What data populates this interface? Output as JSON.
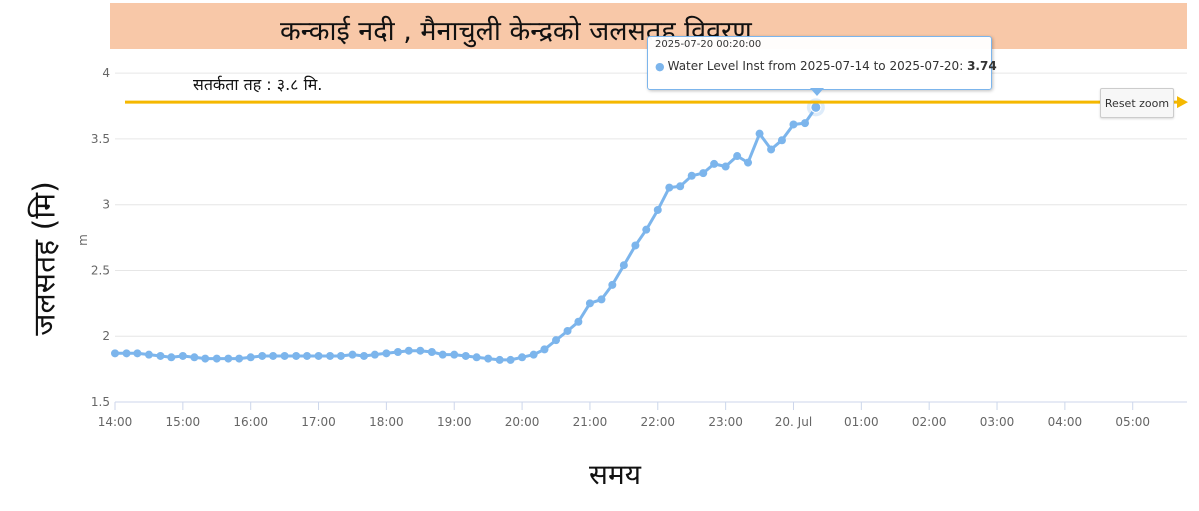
{
  "title": "कन्काई   नदी , मैनाचुली केन्द्रको जलसतह विवरण",
  "alert": {
    "label": "सतर्कता तह :  ३.८ मि.",
    "value": 3.78,
    "color": "#f5b800"
  },
  "reset_zoom_label": "Reset zoom",
  "tooltip": {
    "header": "2025-07-20 00:20:00",
    "series_label": "Water Level Inst from 2025-07-14 to 2025-07-20:",
    "value": "3.74"
  },
  "chart_data": {
    "type": "line",
    "ylabel_outer": "जलसतह (मि)",
    "ylabel_unit": "m",
    "xlabel": "समय",
    "ylim": [
      1.5,
      4.1
    ],
    "yticks": [
      {
        "value": 1.5,
        "label": "1.5"
      },
      {
        "value": 2,
        "label": "2"
      },
      {
        "value": 2.5,
        "label": "2.5"
      },
      {
        "value": 3,
        "label": "3"
      },
      {
        "value": 3.5,
        "label": "3.5"
      },
      {
        "value": 4,
        "label": "4"
      }
    ],
    "xlim_hours": [
      14,
      29.8
    ],
    "xticks": [
      {
        "h": 14,
        "label": "14:00"
      },
      {
        "h": 15,
        "label": "15:00"
      },
      {
        "h": 16,
        "label": "16:00"
      },
      {
        "h": 17,
        "label": "17:00"
      },
      {
        "h": 18,
        "label": "18:00"
      },
      {
        "h": 19,
        "label": "19:00"
      },
      {
        "h": 20,
        "label": "20:00"
      },
      {
        "h": 21,
        "label": "21:00"
      },
      {
        "h": 22,
        "label": "22:00"
      },
      {
        "h": 23,
        "label": "23:00"
      },
      {
        "h": 24,
        "label": "20. Jul"
      },
      {
        "h": 25,
        "label": "01:00"
      },
      {
        "h": 26,
        "label": "02:00"
      },
      {
        "h": 27,
        "label": "03:00"
      },
      {
        "h": 28,
        "label": "04:00"
      },
      {
        "h": 29,
        "label": "05:00"
      }
    ],
    "series": [
      {
        "color": "#7cb5ec",
        "points": [
          [
            14.0,
            1.87
          ],
          [
            14.17,
            1.87
          ],
          [
            14.33,
            1.87
          ],
          [
            14.5,
            1.86
          ],
          [
            14.67,
            1.85
          ],
          [
            14.83,
            1.84
          ],
          [
            15.0,
            1.85
          ],
          [
            15.17,
            1.84
          ],
          [
            15.33,
            1.83
          ],
          [
            15.5,
            1.83
          ],
          [
            15.67,
            1.83
          ],
          [
            15.83,
            1.83
          ],
          [
            16.0,
            1.84
          ],
          [
            16.17,
            1.85
          ],
          [
            16.33,
            1.85
          ],
          [
            16.5,
            1.85
          ],
          [
            16.67,
            1.85
          ],
          [
            16.83,
            1.85
          ],
          [
            17.0,
            1.85
          ],
          [
            17.17,
            1.85
          ],
          [
            17.33,
            1.85
          ],
          [
            17.5,
            1.86
          ],
          [
            17.67,
            1.85
          ],
          [
            17.83,
            1.86
          ],
          [
            18.0,
            1.87
          ],
          [
            18.17,
            1.88
          ],
          [
            18.33,
            1.89
          ],
          [
            18.5,
            1.89
          ],
          [
            18.67,
            1.88
          ],
          [
            18.83,
            1.86
          ],
          [
            19.0,
            1.86
          ],
          [
            19.17,
            1.85
          ],
          [
            19.33,
            1.84
          ],
          [
            19.5,
            1.83
          ],
          [
            19.67,
            1.82
          ],
          [
            19.83,
            1.82
          ],
          [
            20.0,
            1.84
          ],
          [
            20.17,
            1.86
          ],
          [
            20.33,
            1.9
          ],
          [
            20.5,
            1.97
          ],
          [
            20.67,
            2.04
          ],
          [
            20.83,
            2.11
          ],
          [
            21.0,
            2.25
          ],
          [
            21.17,
            2.28
          ],
          [
            21.33,
            2.39
          ],
          [
            21.5,
            2.54
          ],
          [
            21.67,
            2.69
          ],
          [
            21.83,
            2.81
          ],
          [
            22.0,
            2.96
          ],
          [
            22.17,
            3.13
          ],
          [
            22.33,
            3.14
          ],
          [
            22.5,
            3.22
          ],
          [
            22.67,
            3.24
          ],
          [
            22.83,
            3.31
          ],
          [
            23.0,
            3.29
          ],
          [
            23.17,
            3.37
          ],
          [
            23.33,
            3.32
          ],
          [
            23.5,
            3.54
          ],
          [
            23.67,
            3.42
          ],
          [
            23.83,
            3.49
          ],
          [
            24.0,
            3.61
          ],
          [
            24.17,
            3.62
          ],
          [
            24.33,
            3.74
          ]
        ]
      }
    ]
  }
}
